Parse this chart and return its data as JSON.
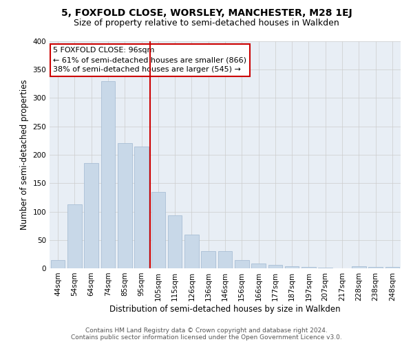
{
  "title": "5, FOXFOLD CLOSE, WORSLEY, MANCHESTER, M28 1EJ",
  "subtitle": "Size of property relative to semi-detached houses in Walkden",
  "xlabel": "Distribution of semi-detached houses by size in Walkden",
  "ylabel": "Number of semi-detached properties",
  "bar_labels": [
    "44sqm",
    "54sqm",
    "64sqm",
    "74sqm",
    "85sqm",
    "95sqm",
    "105sqm",
    "115sqm",
    "126sqm",
    "136sqm",
    "146sqm",
    "156sqm",
    "166sqm",
    "177sqm",
    "187sqm",
    "197sqm",
    "207sqm",
    "217sqm",
    "228sqm",
    "238sqm",
    "248sqm"
  ],
  "bar_values": [
    15,
    113,
    185,
    330,
    220,
    215,
    134,
    93,
    60,
    30,
    30,
    14,
    9,
    6,
    4,
    2,
    1,
    0,
    4,
    3,
    2
  ],
  "bar_color": "#c8d8e8",
  "bar_edge_color": "#a0b8d0",
  "grid_color": "#cccccc",
  "background_color": "#e8eef5",
  "vline_x": 5.5,
  "vline_color": "#cc0000",
  "annotation_title": "5 FOXFOLD CLOSE: 96sqm",
  "annotation_line1": "← 61% of semi-detached houses are smaller (866)",
  "annotation_line2": "38% of semi-detached houses are larger (545) →",
  "annotation_box_color": "#ffffff",
  "annotation_box_edge": "#cc0000",
  "ylim": [
    0,
    400
  ],
  "yticks": [
    0,
    50,
    100,
    150,
    200,
    250,
    300,
    350,
    400
  ],
  "footer_line1": "Contains HM Land Registry data © Crown copyright and database right 2024.",
  "footer_line2": "Contains public sector information licensed under the Open Government Licence v3.0.",
  "title_fontsize": 10,
  "subtitle_fontsize": 9,
  "axis_label_fontsize": 8.5,
  "tick_fontsize": 7.5,
  "annotation_fontsize": 8,
  "footer_fontsize": 6.5
}
